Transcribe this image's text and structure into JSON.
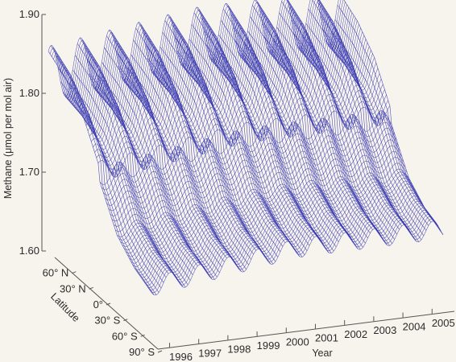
{
  "chart_data": {
    "type": "surface",
    "ylabel": "Methane (μmol per mol air)",
    "xlabel": "Year",
    "zlabel": "Latitude",
    "zlim": [
      1.6,
      1.9
    ],
    "z_ticks": [
      "1.60",
      "1.70",
      "1.80",
      "1.90"
    ],
    "year_ticks": [
      "1996",
      "1997",
      "1998",
      "1999",
      "2000",
      "2001",
      "2002",
      "2003",
      "2004",
      "2005"
    ],
    "latitude_ticks": [
      "60° N",
      "30° N",
      "0°",
      "30° S",
      "60° S",
      "90° S"
    ],
    "latitudes": [
      90,
      60,
      30,
      0,
      -30,
      -60,
      -90
    ],
    "years": [
      1996,
      1997,
      1998,
      1999,
      2000,
      2001,
      2002,
      2003,
      2004,
      2005
    ],
    "mean_by_latitude": [
      1.84,
      1.83,
      1.81,
      1.77,
      1.72,
      1.7,
      1.69
    ],
    "mean_by_year": [
      1.74,
      1.745,
      1.75,
      1.755,
      1.76,
      1.765,
      1.765,
      1.765,
      1.765,
      1.765
    ],
    "seasonal_amplitude_by_latitude": [
      0.035,
      0.03,
      0.022,
      0.012,
      0.008,
      0.01,
      0.012
    ],
    "colors": {
      "mesh": "#3b3bb0",
      "axis": "#555555",
      "background": "#f7f4ee"
    }
  }
}
